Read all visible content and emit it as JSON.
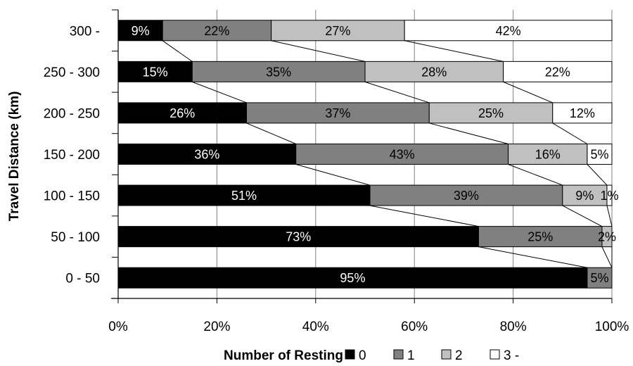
{
  "chart_data": {
    "type": "bar",
    "orientation": "horizontal",
    "stacked": true,
    "percent": true,
    "ylabel": "Travel Distance (km)",
    "categories": [
      "300 -",
      "250 - 300",
      "200 - 250",
      "150 - 200",
      "100 - 150",
      "50 - 100",
      "0 - 50"
    ],
    "series": [
      {
        "name": "0",
        "color": "#000000",
        "values": [
          9,
          15,
          26,
          36,
          51,
          73,
          95
        ],
        "labels": [
          "9%",
          "15%",
          "26%",
          "36%",
          "51%",
          "73%",
          "95%"
        ]
      },
      {
        "name": "1",
        "color": "#808080",
        "values": [
          22,
          35,
          37,
          43,
          39,
          25,
          5
        ],
        "labels": [
          "22%",
          "35%",
          "37%",
          "43%",
          "39%",
          "25%",
          "5%"
        ]
      },
      {
        "name": "2",
        "color": "#c0c0c0",
        "values": [
          27,
          28,
          25,
          16,
          9,
          2,
          0
        ],
        "labels": [
          "27%",
          "28%",
          "25%",
          "16%",
          "9%",
          "2%",
          ""
        ]
      },
      {
        "name": "3 -",
        "color": "#ffffff",
        "values": [
          42,
          22,
          12,
          5,
          1,
          0,
          0
        ],
        "labels": [
          "42%",
          "22%",
          "12%",
          "5%",
          "1%",
          "",
          ""
        ]
      }
    ],
    "xlim": [
      0,
      100
    ],
    "x_ticks": [
      "0%",
      "20%",
      "40%",
      "60%",
      "80%",
      "100%"
    ],
    "grid": true,
    "series_lines": true,
    "legend": {
      "title": "Number of Resting",
      "position": "bottom"
    }
  }
}
